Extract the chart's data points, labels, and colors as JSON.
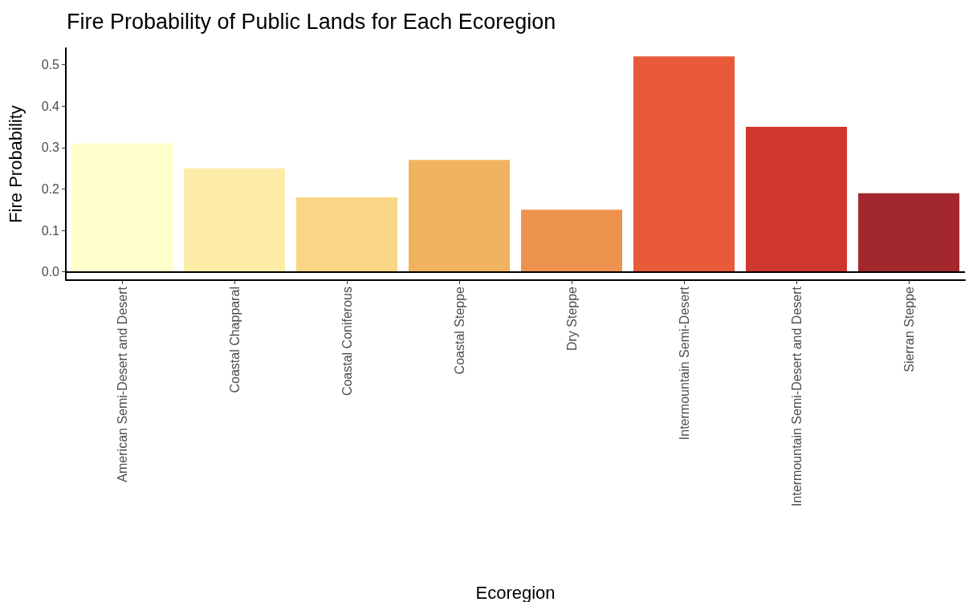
{
  "chart_data": {
    "type": "bar",
    "title": "Fire Probability of Public Lands for Each Ecoregion",
    "xlabel": "Ecoregion",
    "ylabel": "Fire Probability",
    "categories": [
      "American Semi-Desert and Desert",
      "Coastal Chapparal",
      "Coastal Coniferous",
      "Coastal Steppe",
      "Dry Steppe",
      "Intermountain Semi-Desert",
      "Intermountain Semi-Desert and Desert",
      "Sierran Steppe"
    ],
    "values": [
      0.31,
      0.25,
      0.18,
      0.27,
      0.15,
      0.52,
      0.35,
      0.19
    ],
    "colors": [
      "#ffffcc",
      "#fdeca8",
      "#f8d686",
      "#f0b461",
      "#ee9250",
      "#e85a3a",
      "#d0372c",
      "#a3282d"
    ],
    "ylim": [
      -0.02,
      0.54
    ],
    "yticks": [
      {
        "value": 0,
        "label": "0.0"
      },
      0.1,
      0.2,
      0.3,
      0.4,
      0.5
    ],
    "ref_lines": [
      {
        "axis": "y",
        "value": 0,
        "color": "#000000"
      }
    ],
    "grid": false
  }
}
